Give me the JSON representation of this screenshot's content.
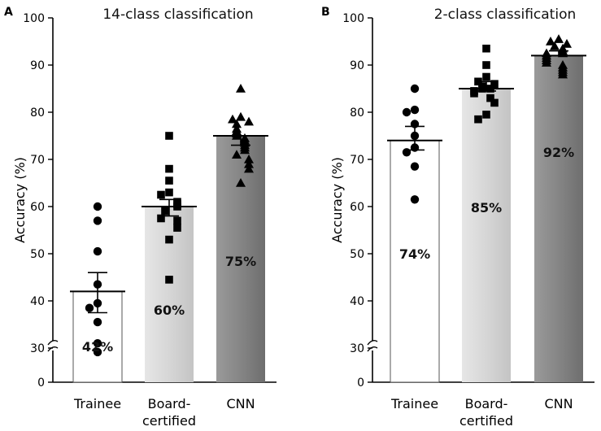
{
  "chart_data": [
    {
      "panel_label": "A",
      "type": "bar",
      "title": "14-class classification",
      "ylabel": "Accuracy (%)",
      "ylim": [
        0,
        100
      ],
      "axis_break": [
        0,
        30
      ],
      "yticks": [
        0,
        30,
        40,
        50,
        60,
        70,
        80,
        90,
        100
      ],
      "categories": [
        {
          "name": "Trainee",
          "lines": [
            "Trainee"
          ],
          "value": 42,
          "label": "42%",
          "fill": "plain",
          "sem_low": 37.5,
          "sem_high": 46,
          "marker": "circle",
          "points": [
            60,
            57,
            50.5,
            43.5,
            39.5,
            38.5,
            35.5,
            31,
            26.5
          ]
        },
        {
          "name": "Board-certified",
          "lines": [
            "Board-",
            "certified"
          ],
          "value": 60,
          "label": "60%",
          "fill": "light",
          "sem_low": 58,
          "sem_high": 61.5,
          "marker": "square",
          "points": [
            75,
            68,
            65.5,
            63,
            62.5,
            61,
            60.5,
            60,
            59,
            57.5,
            57,
            55.5,
            53,
            44.5
          ]
        },
        {
          "name": "CNN",
          "lines": [
            "CNN"
          ],
          "value": 75,
          "label": "75%",
          "fill": "dark",
          "sem_low": 73,
          "sem_high": 75,
          "marker": "triangle",
          "points": [
            85,
            79,
            78.5,
            78,
            77.5,
            76.5,
            76,
            75.5,
            75,
            74.5,
            74,
            73.5,
            73,
            72.5,
            72,
            71,
            70,
            69,
            68,
            65
          ]
        }
      ]
    },
    {
      "panel_label": "B",
      "type": "bar",
      "title": "2-class classification",
      "ylabel": "Accuracy (%)",
      "ylim": [
        0,
        100
      ],
      "axis_break": [
        0,
        30
      ],
      "yticks": [
        0,
        30,
        40,
        50,
        60,
        70,
        80,
        90,
        100
      ],
      "categories": [
        {
          "name": "Trainee",
          "lines": [
            "Trainee"
          ],
          "value": 74,
          "label": "74%",
          "fill": "plain",
          "sem_low": 72,
          "sem_high": 77,
          "marker": "circle",
          "points": [
            85,
            80.5,
            80,
            77.5,
            75,
            72.5,
            71.5,
            68.5,
            61.5
          ]
        },
        {
          "name": "Board-certified",
          "lines": [
            "Board-",
            "certified"
          ],
          "value": 85,
          "label": "85%",
          "fill": "light",
          "sem_low": 84.5,
          "sem_high": 86.5,
          "marker": "square",
          "points": [
            93.5,
            90,
            87.5,
            86.5,
            86,
            85.5,
            85,
            85,
            84.5,
            84,
            83,
            82,
            79.5,
            78.5
          ]
        },
        {
          "name": "CNN",
          "lines": [
            "CNN"
          ],
          "value": 92,
          "label": "92%",
          "fill": "dark",
          "sem_low": 92,
          "sem_high": 93,
          "marker": "triangle",
          "points": [
            95.5,
            95,
            94.5,
            94,
            93.5,
            93,
            92.5,
            92.5,
            92,
            91.5,
            91,
            90.5,
            90,
            89.5,
            89,
            88.5,
            88
          ]
        }
      ]
    }
  ]
}
